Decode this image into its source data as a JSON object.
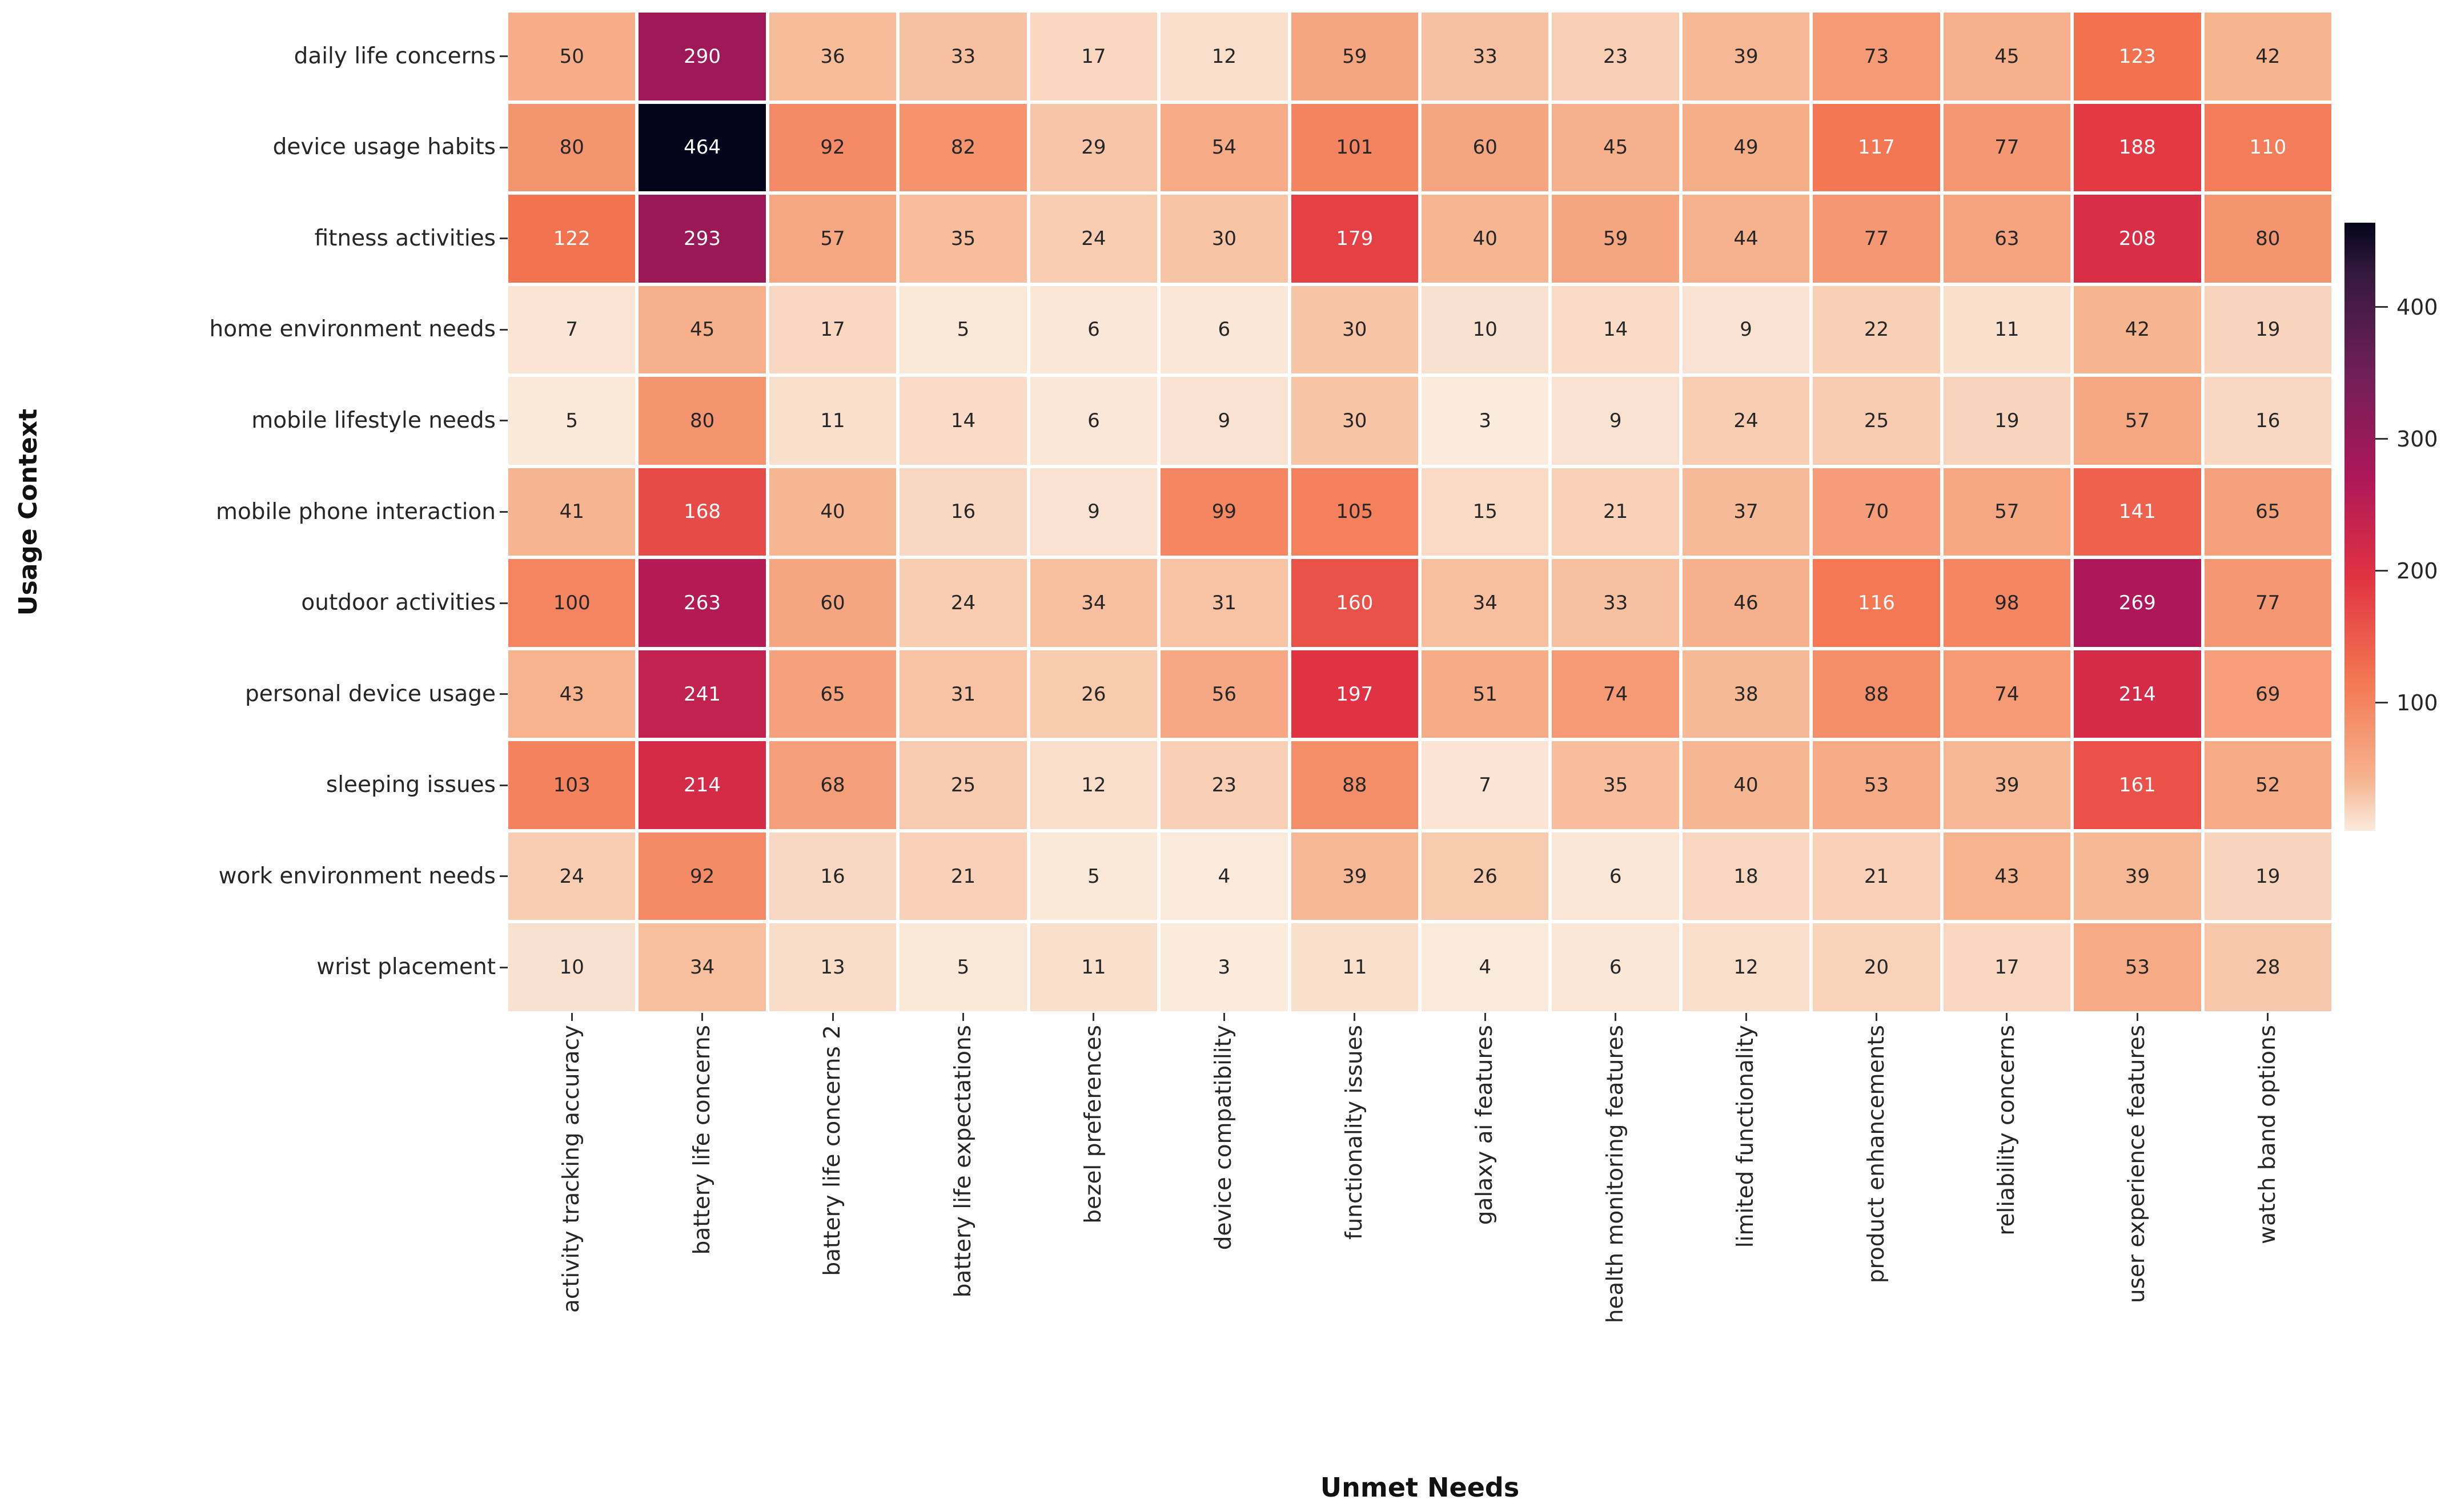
{
  "chart_data": {
    "type": "heatmap",
    "xlabel": "Unmet Needs",
    "ylabel": "Usage Context",
    "x_categories": [
      "activity tracking accuracy",
      "battery life concerns",
      "battery life concerns 2",
      "battery life expectations",
      "bezel preferences",
      "device compatibility",
      "functionality issues",
      "galaxy ai features",
      "health monitoring features",
      "limited functionality",
      "product enhancements",
      "reliability concerns",
      "user experience features",
      "watch band options"
    ],
    "y_categories": [
      "daily life concerns",
      "device usage habits",
      "fitness activities",
      "home environment needs",
      "mobile lifestyle needs",
      "mobile phone interaction",
      "outdoor activities",
      "personal device usage",
      "sleeping issues",
      "work environment needs",
      "wrist placement"
    ],
    "values": [
      [
        50,
        290,
        36,
        33,
        17,
        12,
        59,
        33,
        23,
        39,
        73,
        45,
        123,
        42
      ],
      [
        80,
        464,
        92,
        82,
        29,
        54,
        101,
        60,
        45,
        49,
        117,
        77,
        188,
        110
      ],
      [
        122,
        293,
        57,
        35,
        24,
        30,
        179,
        40,
        59,
        44,
        77,
        63,
        208,
        80
      ],
      [
        7,
        45,
        17,
        5,
        6,
        6,
        30,
        10,
        14,
        9,
        22,
        11,
        42,
        19
      ],
      [
        5,
        80,
        11,
        14,
        6,
        9,
        30,
        3,
        9,
        24,
        25,
        19,
        57,
        16
      ],
      [
        41,
        168,
        40,
        16,
        9,
        99,
        105,
        15,
        21,
        37,
        70,
        57,
        141,
        65
      ],
      [
        100,
        263,
        60,
        24,
        34,
        31,
        160,
        34,
        33,
        46,
        116,
        98,
        269,
        77
      ],
      [
        43,
        241,
        65,
        31,
        26,
        56,
        197,
        51,
        74,
        38,
        88,
        74,
        214,
        69
      ],
      [
        103,
        214,
        68,
        25,
        12,
        23,
        88,
        7,
        35,
        40,
        53,
        39,
        161,
        52
      ],
      [
        24,
        92,
        16,
        21,
        5,
        4,
        39,
        26,
        6,
        18,
        21,
        43,
        39,
        19
      ],
      [
        10,
        34,
        13,
        5,
        11,
        3,
        11,
        4,
        6,
        12,
        20,
        17,
        53,
        28
      ]
    ],
    "vmin": 3,
    "vmax": 464,
    "grid": false,
    "annotated": true,
    "colormap": "rocket_r",
    "colormap_stops": [
      {
        "t": 0.0,
        "color": "#FAEBDD"
      },
      {
        "t": 0.0833,
        "color": "#F6B48F"
      },
      {
        "t": 0.25,
        "color": "#F37651"
      },
      {
        "t": 0.4167,
        "color": "#E13342"
      },
      {
        "t": 0.5833,
        "color": "#AD1759"
      },
      {
        "t": 0.75,
        "color": "#701F57"
      },
      {
        "t": 0.9167,
        "color": "#35193E"
      },
      {
        "t": 1.0,
        "color": "#03051A"
      }
    ],
    "colorbar": {
      "position": "right",
      "ticks": [
        100,
        200,
        300,
        400
      ]
    },
    "annotation_dark_text": "#262626",
    "annotation_light_text": "#ffffff",
    "background": "#ffffff"
  }
}
